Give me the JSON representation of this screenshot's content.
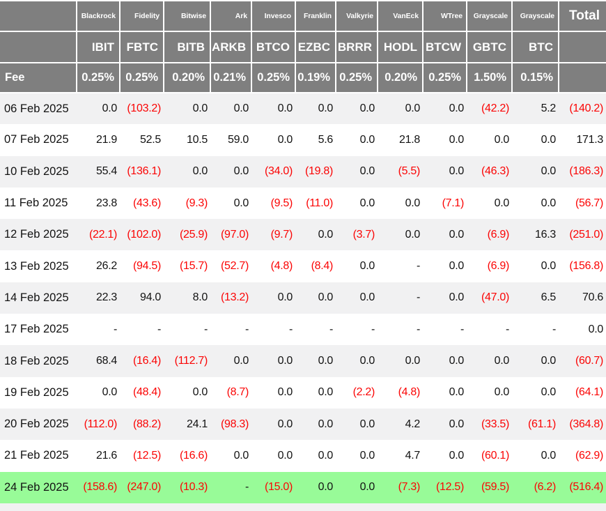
{
  "chart_data": {
    "type": "table",
    "fee_label": "Fee",
    "total_label": "Total",
    "columns": [
      {
        "provider": "Blackrock",
        "ticker": "IBIT",
        "fee": "0.25%"
      },
      {
        "provider": "Fidelity",
        "ticker": "FBTC",
        "fee": "0.25%"
      },
      {
        "provider": "Bitwise",
        "ticker": "BITB",
        "fee": "0.20%"
      },
      {
        "provider": "Ark",
        "ticker": "ARKB",
        "fee": "0.21%"
      },
      {
        "provider": "Invesco",
        "ticker": "BTCO",
        "fee": "0.25%"
      },
      {
        "provider": "Franklin",
        "ticker": "EZBC",
        "fee": "0.19%"
      },
      {
        "provider": "Valkyrie",
        "ticker": "BRRR",
        "fee": "0.25%"
      },
      {
        "provider": "VanEck",
        "ticker": "HODL",
        "fee": "0.20%"
      },
      {
        "provider": "WTree",
        "ticker": "BTCW",
        "fee": "0.25%"
      },
      {
        "provider": "Grayscale",
        "ticker": "GBTC",
        "fee": "1.50%"
      },
      {
        "provider": "Grayscale",
        "ticker": "BTC",
        "fee": "0.15%"
      }
    ],
    "rows": [
      {
        "date": "06 Feb 2025",
        "highlight": false,
        "values": [
          "0.0",
          "(103.2)",
          "0.0",
          "0.0",
          "0.0",
          "0.0",
          "0.0",
          "0.0",
          "0.0",
          "(42.2)",
          "5.2",
          "(140.2)"
        ]
      },
      {
        "date": "07 Feb 2025",
        "highlight": false,
        "values": [
          "21.9",
          "52.5",
          "10.5",
          "59.0",
          "0.0",
          "5.6",
          "0.0",
          "21.8",
          "0.0",
          "0.0",
          "0.0",
          "171.3"
        ]
      },
      {
        "date": "10 Feb 2025",
        "highlight": false,
        "values": [
          "55.4",
          "(136.1)",
          "0.0",
          "0.0",
          "(34.0)",
          "(19.8)",
          "0.0",
          "(5.5)",
          "0.0",
          "(46.3)",
          "0.0",
          "(186.3)"
        ]
      },
      {
        "date": "11 Feb 2025",
        "highlight": false,
        "values": [
          "23.8",
          "(43.6)",
          "(9.3)",
          "0.0",
          "(9.5)",
          "(11.0)",
          "0.0",
          "0.0",
          "(7.1)",
          "0.0",
          "0.0",
          "(56.7)"
        ]
      },
      {
        "date": "12 Feb 2025",
        "highlight": false,
        "values": [
          "(22.1)",
          "(102.0)",
          "(25.9)",
          "(97.0)",
          "(9.7)",
          "0.0",
          "(3.7)",
          "0.0",
          "0.0",
          "(6.9)",
          "16.3",
          "(251.0)"
        ]
      },
      {
        "date": "13 Feb 2025",
        "highlight": false,
        "values": [
          "26.2",
          "(94.5)",
          "(15.7)",
          "(52.7)",
          "(4.8)",
          "(8.4)",
          "0.0",
          "-",
          "0.0",
          "(6.9)",
          "0.0",
          "(156.8)"
        ]
      },
      {
        "date": "14 Feb 2025",
        "highlight": false,
        "values": [
          "22.3",
          "94.0",
          "8.0",
          "(13.2)",
          "0.0",
          "0.0",
          "0.0",
          "-",
          "0.0",
          "(47.0)",
          "6.5",
          "70.6"
        ]
      },
      {
        "date": "17 Feb 2025",
        "highlight": false,
        "values": [
          "-",
          "-",
          "-",
          "-",
          "-",
          "-",
          "-",
          "-",
          "-",
          "-",
          "-",
          "0.0"
        ]
      },
      {
        "date": "18 Feb 2025",
        "highlight": false,
        "values": [
          "68.4",
          "(16.4)",
          "(112.7)",
          "0.0",
          "0.0",
          "0.0",
          "0.0",
          "0.0",
          "0.0",
          "0.0",
          "0.0",
          "(60.7)"
        ]
      },
      {
        "date": "19 Feb 2025",
        "highlight": false,
        "values": [
          "0.0",
          "(48.4)",
          "0.0",
          "(8.7)",
          "0.0",
          "0.0",
          "(2.2)",
          "(4.8)",
          "0.0",
          "0.0",
          "0.0",
          "(64.1)"
        ]
      },
      {
        "date": "20 Feb 2025",
        "highlight": false,
        "values": [
          "(112.0)",
          "(88.2)",
          "24.1",
          "(98.3)",
          "0.0",
          "0.0",
          "0.0",
          "4.2",
          "0.0",
          "(33.5)",
          "(61.1)",
          "(364.8)"
        ]
      },
      {
        "date": "21 Feb 2025",
        "highlight": false,
        "values": [
          "21.6",
          "(12.5)",
          "(16.6)",
          "0.0",
          "0.0",
          "0.0",
          "0.0",
          "4.7",
          "0.0",
          "(60.1)",
          "0.0",
          "(62.9)"
        ]
      },
      {
        "date": "24 Feb 2025",
        "highlight": true,
        "values": [
          "(158.6)",
          "(247.0)",
          "(10.3)",
          "-",
          "(15.0)",
          "0.0",
          "0.0",
          "(7.3)",
          "(12.5)",
          "(59.5)",
          "(6.2)",
          "(516.4)"
        ]
      }
    ],
    "colors": {
      "header_bg": "#7f7f7f",
      "header_text": "#ffffff",
      "stripe_bg": "#f1f1f2",
      "highlight_bg": "#98fb98",
      "negative_text": "#fb0404",
      "positive_text": "#121212"
    }
  }
}
